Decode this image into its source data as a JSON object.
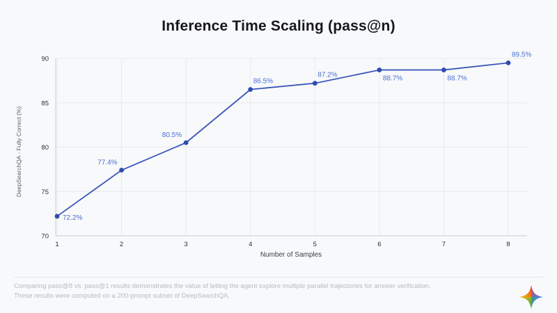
{
  "header": {
    "title": "Inference Time Scaling (pass@n)"
  },
  "chart_data": {
    "type": "line",
    "title": "Inference Time Scaling (pass@n)",
    "xlabel": "Number of Samples",
    "ylabel": "DeepSearchQA - Fully Correct (%)",
    "x": [
      1,
      2,
      3,
      4,
      5,
      6,
      7,
      8
    ],
    "values": [
      72.2,
      77.4,
      80.5,
      86.5,
      87.2,
      88.7,
      88.7,
      89.5
    ],
    "point_labels": [
      "72.2%",
      "77.4%",
      "80.5%",
      "86.5%",
      "87.2%",
      "88.7%",
      "88.7%",
      "89.5%"
    ],
    "xticks": [
      "1",
      "2",
      "3",
      "4",
      "5",
      "6",
      "7",
      "8"
    ],
    "yticks": [
      70,
      75,
      80,
      85,
      90
    ],
    "ylim": [
      70,
      90
    ],
    "grid": true,
    "legend": "none",
    "colors": {
      "line": "#3a57bb",
      "point": "#2e4cb0",
      "point_label": "#4a6fd4",
      "gridline": "#e8eaef",
      "axis_line": "#c9cdd4",
      "tick_text": "#2b2d31",
      "axis_title": "#5d6066"
    }
  },
  "footer": {
    "caption_line1": "Comparing pass@8 vs. pass@1 results demonstrates the value of letting the agent explore multiple parallel trajectories for answer verification.",
    "caption_line2": "These results were computed on a 200-prompt subset of DeepSearchQA.",
    "logo_name": "google-ai-sparkle",
    "logo_colors": [
      "#ea4335",
      "#4285f4",
      "#34a853",
      "#fbbc05"
    ]
  }
}
